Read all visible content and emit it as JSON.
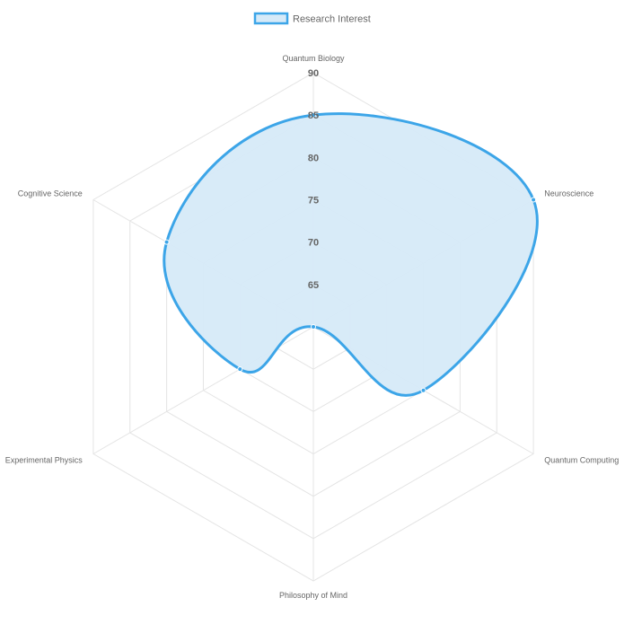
{
  "chart_data": {
    "type": "radar",
    "title": "",
    "legend": {
      "position": "top",
      "labels": [
        "Research Interest"
      ]
    },
    "categories": [
      "Quantum Biology",
      "Neuroscience",
      "Quantum Computing",
      "Philosophy of Mind",
      "Experimental Physics",
      "Cognitive Science"
    ],
    "series": [
      {
        "name": "Research Interest",
        "values": [
          85,
          90,
          75,
          60,
          70,
          80
        ],
        "border_color": "#3ca5e8",
        "fill_color": "#d6eaf8"
      }
    ],
    "r_range": [
      60,
      90
    ],
    "ticks": [
      65,
      70,
      75,
      80,
      85,
      90
    ],
    "grid": true
  }
}
